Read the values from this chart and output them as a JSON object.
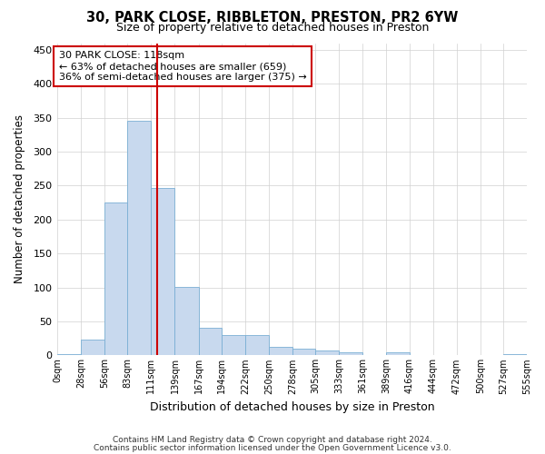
{
  "title1": "30, PARK CLOSE, RIBBLETON, PRESTON, PR2 6YW",
  "title2": "Size of property relative to detached houses in Preston",
  "xlabel": "Distribution of detached houses by size in Preston",
  "ylabel": "Number of detached properties",
  "footer1": "Contains HM Land Registry data © Crown copyright and database right 2024.",
  "footer2": "Contains public sector information licensed under the Open Government Licence v3.0.",
  "annotation_line1": "30 PARK CLOSE: 118sqm",
  "annotation_line2": "← 63% of detached houses are smaller (659)",
  "annotation_line3": "36% of semi-detached houses are larger (375) →",
  "property_size": 118,
  "bar_color": "#c8d9ee",
  "bar_edge_color": "#7aafd4",
  "vline_color": "#cc0000",
  "annotation_box_color": "#cc0000",
  "background_color": "#ffffff",
  "grid_color": "#d0d0d0",
  "bins": [
    0,
    28,
    56,
    83,
    111,
    139,
    167,
    194,
    222,
    250,
    278,
    305,
    333,
    361,
    389,
    416,
    444,
    472,
    500,
    527,
    555
  ],
  "bin_labels": [
    "0sqm",
    "28sqm",
    "56sqm",
    "83sqm",
    "111sqm",
    "139sqm",
    "167sqm",
    "194sqm",
    "222sqm",
    "250sqm",
    "278sqm",
    "305sqm",
    "333sqm",
    "361sqm",
    "389sqm",
    "416sqm",
    "444sqm",
    "472sqm",
    "500sqm",
    "527sqm",
    "555sqm"
  ],
  "counts": [
    2,
    23,
    225,
    346,
    246,
    101,
    40,
    30,
    30,
    13,
    10,
    7,
    5,
    0,
    4,
    0,
    0,
    0,
    0,
    2
  ],
  "ylim": [
    0,
    460
  ],
  "yticks": [
    0,
    50,
    100,
    150,
    200,
    250,
    300,
    350,
    400,
    450
  ]
}
